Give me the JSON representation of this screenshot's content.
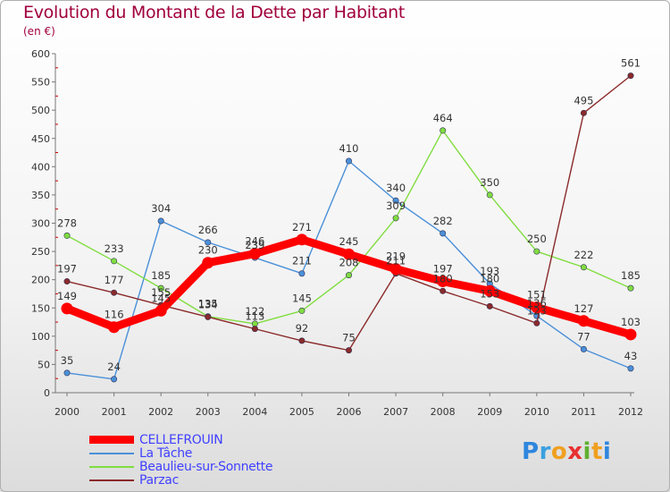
{
  "header": {
    "title": "Evolution du Montant de la Dette par Habitant",
    "subtitle": "(en €)"
  },
  "logo": {
    "text": "Proxiti",
    "letters": [
      "P",
      "r",
      "o",
      "x",
      "i",
      "t",
      "i"
    ],
    "colors": [
      "#2e86de",
      "#3aa0e0",
      "#f0a020",
      "#e83030",
      "#60b030",
      "#f0a020",
      "#2e86de"
    ]
  },
  "chart_data": {
    "type": "line",
    "title": "Evolution du Montant de la Dette par Habitant",
    "ylabel": "(en €)",
    "xlabel": "",
    "ylim": [
      0,
      600
    ],
    "yticks": [
      0,
      50,
      100,
      150,
      200,
      250,
      300,
      350,
      400,
      450,
      500,
      550,
      600
    ],
    "categories": [
      "2000",
      "2001",
      "2002",
      "2003",
      "2004",
      "2005",
      "2006",
      "2007",
      "2008",
      "2009",
      "2010",
      "2011",
      "2012"
    ],
    "grid": false,
    "legend_position": "bottom-left",
    "series": [
      {
        "name": "CELLEFROUIN",
        "color": "#ff0000",
        "values": [
          149,
          116,
          145,
          230,
          246,
          271,
          245,
          219,
          197,
          180,
          151,
          127,
          103
        ],
        "labels": [
          "149",
          "116",
          "145",
          "230",
          "246",
          "271",
          "245",
          "219",
          "197",
          "180",
          "151",
          "127",
          "103"
        ]
      },
      {
        "name": "La Tâche",
        "color": "#4a90d9",
        "values": [
          35,
          24,
          304,
          266,
          239,
          211,
          410,
          340,
          282,
          193,
          136,
          77,
          43
        ],
        "labels": [
          "35",
          "24",
          "304",
          "266",
          "239",
          "211",
          "410",
          "340",
          "282",
          "193",
          "136",
          "77",
          "43"
        ]
      },
      {
        "name": "Beaulieu-sur-Sonnette",
        "color": "#80dd40",
        "values": [
          278,
          233,
          185,
          135,
          122,
          145,
          208,
          309,
          464,
          350,
          250,
          222,
          185
        ],
        "labels": [
          "278",
          "233",
          "185",
          "135",
          "122",
          "145",
          "208",
          "309",
          "464",
          "350",
          "250",
          "222",
          "185"
        ]
      },
      {
        "name": "Parzac",
        "color": "#8b2a2a",
        "values": [
          197,
          177,
          155,
          134,
          113,
          92,
          75,
          211,
          180,
          153,
          123,
          495,
          561
        ],
        "labels": [
          "197",
          "177",
          "155",
          "134",
          "113",
          "92",
          "75",
          "211",
          "180",
          "153",
          "123",
          "495",
          "561"
        ]
      }
    ]
  }
}
